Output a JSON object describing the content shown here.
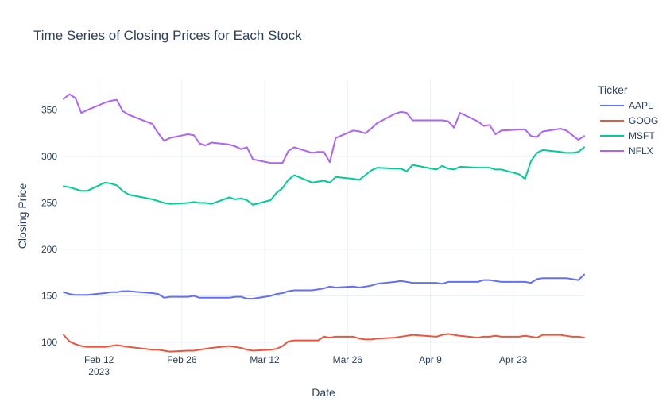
{
  "chart_data": {
    "type": "line",
    "title": "Time Series of Closing Prices for Each Stock",
    "xlabel": "Date",
    "ylabel": "Closing Price",
    "xlim": [
      "2023-02-06",
      "2023-05-05"
    ],
    "ylim": [
      82,
      383
    ],
    "x_ticks": [
      {
        "date": "2023-02-12",
        "label": "Feb 12",
        "sublabel": "2023"
      },
      {
        "date": "2023-02-26",
        "label": "Feb 26",
        "sublabel": ""
      },
      {
        "date": "2023-03-12",
        "label": "Mar 12",
        "sublabel": ""
      },
      {
        "date": "2023-03-26",
        "label": "Mar 26",
        "sublabel": ""
      },
      {
        "date": "2023-04-09",
        "label": "Apr 9",
        "sublabel": ""
      },
      {
        "date": "2023-04-23",
        "label": "Apr 23",
        "sublabel": ""
      }
    ],
    "y_ticks": [
      100,
      150,
      200,
      250,
      300,
      350
    ],
    "grid": true,
    "legend": {
      "title": "Ticker",
      "placement": "right"
    },
    "x": [
      "2023-02-06",
      "2023-02-07",
      "2023-02-08",
      "2023-02-09",
      "2023-02-10",
      "2023-02-13",
      "2023-02-14",
      "2023-02-15",
      "2023-02-16",
      "2023-02-17",
      "2023-02-21",
      "2023-02-22",
      "2023-02-23",
      "2023-02-24",
      "2023-02-27",
      "2023-02-28",
      "2023-03-01",
      "2023-03-02",
      "2023-03-03",
      "2023-03-06",
      "2023-03-07",
      "2023-03-08",
      "2023-03-09",
      "2023-03-10",
      "2023-03-13",
      "2023-03-14",
      "2023-03-15",
      "2023-03-16",
      "2023-03-17",
      "2023-03-20",
      "2023-03-21",
      "2023-03-22",
      "2023-03-23",
      "2023-03-24",
      "2023-03-27",
      "2023-03-28",
      "2023-03-29",
      "2023-03-30",
      "2023-03-31",
      "2023-04-03",
      "2023-04-04",
      "2023-04-05",
      "2023-04-06",
      "2023-04-10",
      "2023-04-11",
      "2023-04-12",
      "2023-04-13",
      "2023-04-14",
      "2023-04-17",
      "2023-04-18",
      "2023-04-19",
      "2023-04-20",
      "2023-04-21",
      "2023-04-24",
      "2023-04-25",
      "2023-04-26",
      "2023-04-27",
      "2023-04-28",
      "2023-05-01",
      "2023-05-02",
      "2023-05-03",
      "2023-05-04",
      "2023-05-05"
    ],
    "series": [
      {
        "name": "AAPL",
        "color": "#636efa",
        "values": [
          154,
          152,
          151,
          151,
          151,
          153,
          154,
          154,
          155,
          155,
          153,
          152,
          148,
          149,
          149,
          150,
          148,
          148,
          148,
          148,
          149,
          149,
          147,
          147,
          150,
          152,
          153,
          155,
          156,
          156,
          157,
          158,
          160,
          159,
          160,
          159,
          160,
          161,
          163,
          165,
          166,
          165,
          164,
          164,
          163,
          165,
          165,
          165,
          165,
          167,
          167,
          166,
          165,
          165,
          165,
          164,
          168,
          169,
          169,
          169,
          168,
          167,
          173
        ]
      },
      {
        "name": "GOOG",
        "color": "#ef553b",
        "values": [
          108,
          101,
          98,
          96,
          95,
          95,
          96,
          97,
          96,
          95,
          92,
          92,
          91,
          90,
          91,
          91,
          92,
          93,
          94,
          96,
          95,
          94,
          92,
          91,
          92,
          93,
          96,
          101,
          102,
          102,
          102,
          106,
          105,
          106,
          106,
          104,
          103,
          103,
          104,
          105,
          106,
          107,
          108,
          106,
          108,
          109,
          108,
          107,
          105,
          106,
          106,
          107,
          106,
          106,
          107,
          106,
          105,
          108,
          108,
          107,
          106,
          106,
          105
        ]
      },
      {
        "name": "MSFT",
        "color": "#00cc96",
        "values": [
          268,
          267,
          265,
          263,
          263,
          272,
          271,
          269,
          263,
          259,
          254,
          252,
          250,
          249,
          250,
          251,
          250,
          250,
          249,
          256,
          254,
          255,
          253,
          248,
          253,
          261,
          266,
          275,
          280,
          272,
          273,
          274,
          272,
          278,
          276,
          275,
          280,
          285,
          288,
          287,
          287,
          284,
          291,
          286,
          290,
          287,
          286,
          289,
          288,
          288,
          288,
          286,
          286,
          281,
          276,
          295,
          304,
          307,
          305,
          304,
          304,
          305,
          310
        ]
      },
      {
        "name": "NFLX",
        "color": "#ab63fa",
        "values": [
          362,
          367,
          363,
          347,
          350,
          358,
          360,
          361,
          349,
          345,
          335,
          325,
          317,
          320,
          324,
          323,
          314,
          312,
          315,
          313,
          311,
          308,
          310,
          297,
          293,
          293,
          293,
          306,
          310,
          304,
          305,
          305,
          294,
          320,
          328,
          327,
          325,
          330,
          336,
          346,
          348,
          347,
          339,
          339,
          339,
          338,
          331,
          347,
          338,
          333,
          334,
          324,
          328,
          329,
          329,
          322,
          321,
          327,
          330,
          328,
          323,
          318,
          322
        ]
      }
    ]
  }
}
